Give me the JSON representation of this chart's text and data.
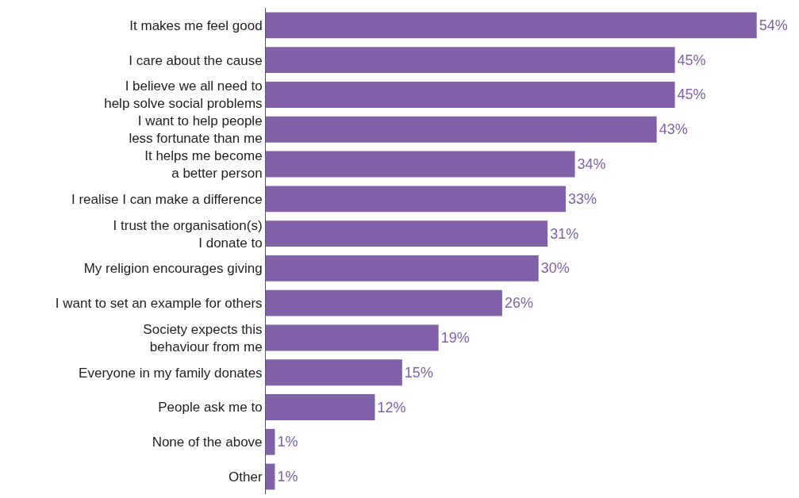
{
  "chart_data": {
    "type": "bar",
    "orientation": "horizontal",
    "categories": [
      "It makes me feel good",
      "I care about the cause",
      "I believe we all need to\nhelp solve social problems",
      "I want to help people\nless fortunate than me",
      "It helps me become\na better person",
      "I realise I can make a difference",
      "I trust the organisation(s)\nI donate to",
      "My religion encourages giving",
      "I want to set an example for others",
      "Society expects this\nbehaviour from me",
      "Everyone in my family donates",
      "People ask me to",
      "None of the above",
      "Other"
    ],
    "values": [
      54,
      45,
      45,
      43,
      34,
      33,
      31,
      30,
      26,
      19,
      15,
      12,
      1,
      1
    ],
    "value_labels": [
      "54%",
      "45%",
      "45%",
      "43%",
      "34%",
      "33%",
      "31%",
      "30%",
      "26%",
      "19%",
      "15%",
      "12%",
      "1%",
      "1%"
    ],
    "color": "#8062a8"
  }
}
